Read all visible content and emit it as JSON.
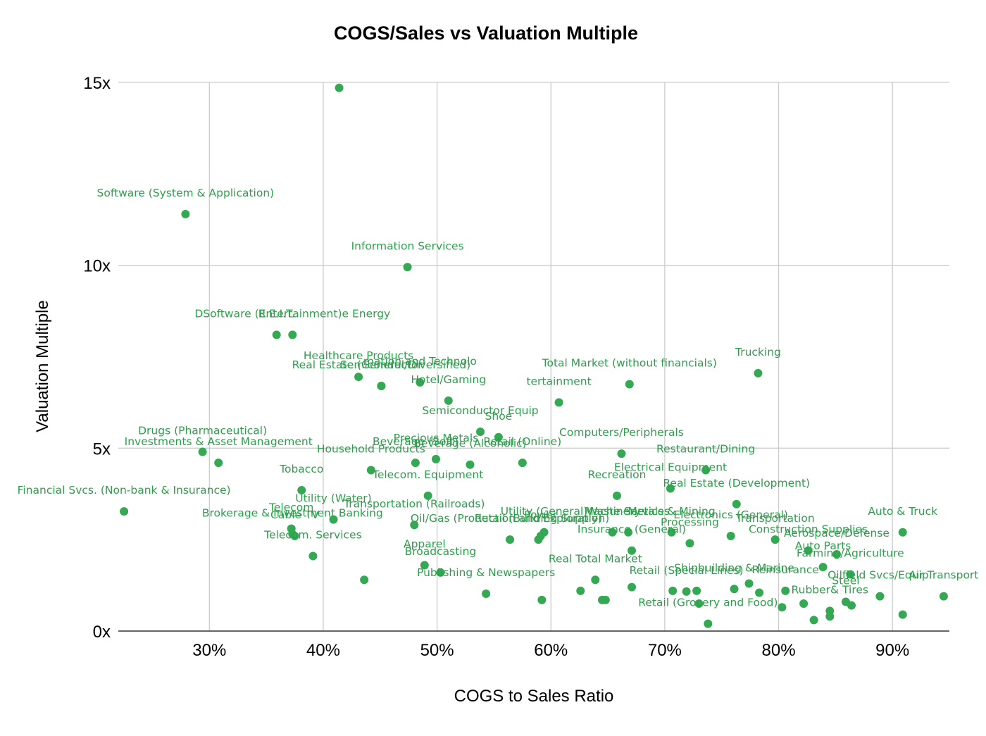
{
  "chart_data": {
    "type": "scatter",
    "title": "COGS/Sales vs Valuation Multiple",
    "xlabel": "COGS to Sales Ratio",
    "ylabel": "Valuation Multiple",
    "xlim": [
      22,
      95
    ],
    "ylim": [
      0,
      15
    ],
    "x_ticks": [
      {
        "value": 30,
        "label": "30%"
      },
      {
        "value": 40,
        "label": "40%"
      },
      {
        "value": 50,
        "label": "50%"
      },
      {
        "value": 60,
        "label": "60%"
      },
      {
        "value": 70,
        "label": "70%"
      },
      {
        "value": 80,
        "label": "80%"
      },
      {
        "value": 90,
        "label": "90%"
      }
    ],
    "y_ticks": [
      {
        "value": 0,
        "label": "0x"
      },
      {
        "value": 5,
        "label": "5x"
      },
      {
        "value": 10,
        "label": "10x"
      },
      {
        "value": 15,
        "label": "15x"
      }
    ],
    "point_color": "#34a853",
    "label_color": "#2e9e4c",
    "grid": true,
    "labeled_points": [
      {
        "label": "Software (System & Application)",
        "x": 27.9,
        "y": 11.4
      },
      {
        "label": "Information Services",
        "x": 47.4,
        "y": 9.95
      },
      {
        "label": "DSoftware (Entertainment)e Energy",
        "x": 37.3,
        "y": 8.1
      },
      {
        "label": "R.E.I.T.",
        "x": 35.9,
        "y": 8.1
      },
      {
        "label": "Healthcare Products",
        "x": 43.1,
        "y": 6.95
      },
      {
        "label": "Semiconductor",
        "x": 45.1,
        "y": 6.7
      },
      {
        "label": "mation and Technolo",
        "x": 48.5,
        "y": 6.8
      },
      {
        "label": "Total Market (without financials)",
        "x": 66.9,
        "y": 6.75
      },
      {
        "label": "Trucking",
        "x": 78.2,
        "y": 7.05
      },
      {
        "label": "Real Estate (General/Diversified)",
        "x": 45.1,
        "y": 6.7
      },
      {
        "label": "tertainment",
        "x": 60.7,
        "y": 6.25
      },
      {
        "label": "Hotel/Gaming",
        "x": 51,
        "y": 6.3
      },
      {
        "label": "Semiconductor Equip",
        "x": 53.8,
        "y": 5.45
      },
      {
        "label": "Shoe",
        "x": 55.4,
        "y": 5.3
      },
      {
        "label": "Computers/Peripherals",
        "x": 66.2,
        "y": 4.85
      },
      {
        "label": "Drugs (Pharmaceutical)",
        "x": 29.4,
        "y": 4.9
      },
      {
        "label": "Investments & Asset Management",
        "x": 30.8,
        "y": 4.6
      },
      {
        "label": "Precious Metals",
        "x": 49.9,
        "y": 4.7
      },
      {
        "label": "Retail (Online)",
        "x": 57.5,
        "y": 4.6
      },
      {
        "label": "Beverage (Soft)",
        "x": 48.1,
        "y": 4.6
      },
      {
        "label": "Beverage (Alcoholic)",
        "x": 52.9,
        "y": 4.55
      },
      {
        "label": "Restaurant/Dining",
        "x": 73.6,
        "y": 4.4
      },
      {
        "label": "Tobacco",
        "x": 38.1,
        "y": 3.85
      },
      {
        "label": "Household Products",
        "x": 44.2,
        "y": 4.4
      },
      {
        "label": "Financial Svcs. (Non-bank & Insurance)",
        "x": 22.5,
        "y": 3.27
      },
      {
        "label": "Telecom. Equipment",
        "x": 49.2,
        "y": 3.7
      },
      {
        "label": "Electrical Equipment",
        "x": 70.5,
        "y": 3.9
      },
      {
        "label": "Recreation",
        "x": 65.8,
        "y": 3.7
      },
      {
        "label": "Real Estate (Development)",
        "x": 76.3,
        "y": 3.47
      },
      {
        "label": "Auto & Truck",
        "x": 90.9,
        "y": 2.7
      },
      {
        "label": "Cable TV",
        "x": 37.5,
        "y": 2.6
      },
      {
        "label": "Utility (Water)",
        "x": 40.9,
        "y": 3.05
      },
      {
        "label": "Telecom",
        "x": 37.2,
        "y": 2.8
      },
      {
        "label": "Transportation (Railroads)",
        "x": 48,
        "y": 2.9
      },
      {
        "label": "Utility (General)",
        "x": 59.4,
        "y": 2.7
      },
      {
        "label": "Machinery",
        "x": 65.4,
        "y": 2.7
      },
      {
        "label": "Waste Services",
        "x": 66.8,
        "y": 2.7
      },
      {
        "label": "Power",
        "x": 59.1,
        "y": 2.6
      },
      {
        "label": "Electronics (General)",
        "x": 75.8,
        "y": 2.6
      },
      {
        "label": "Metals & Mining",
        "x": 70.6,
        "y": 2.7
      },
      {
        "label": "Transportation",
        "x": 79.7,
        "y": 2.5
      },
      {
        "label": "Brokerage & Investment Banking",
        "x": 37.3,
        "y": 2.65
      },
      {
        "label": "Oil/Gas (Production and Exploration)",
        "x": 56.4,
        "y": 2.5
      },
      {
        "label": "Retail (Building Supply)",
        "x": 58.9,
        "y": 2.5
      },
      {
        "label": "Processing",
        "x": 72.2,
        "y": 2.4
      },
      {
        "label": "Construction Supplies",
        "x": 82.6,
        "y": 2.2
      },
      {
        "label": "Insurance (General)",
        "x": 67.1,
        "y": 2.2
      },
      {
        "label": "Aerospace/Defense",
        "x": 85.1,
        "y": 2.1
      },
      {
        "label": "Apparel",
        "x": 48.9,
        "y": 1.8
      },
      {
        "label": "Telecom. Services",
        "x": 39.1,
        "y": 2.05
      },
      {
        "label": "Auto Parts",
        "x": 83.9,
        "y": 1.75
      },
      {
        "label": "Broadcasting",
        "x": 50.3,
        "y": 1.6
      },
      {
        "label": "Real Total Market",
        "x": 63.9,
        "y": 1.4
      },
      {
        "label": "Shipbuilding & Marine",
        "x": 76.1,
        "y": 1.15
      },
      {
        "label": "Farming/Agriculture",
        "x": 86.3,
        "y": 1.55
      },
      {
        "label": "Air Transport",
        "x": 94.5,
        "y": 0.95
      },
      {
        "label": "Publishing & Newspapers",
        "x": 54.3,
        "y": 1.02
      },
      {
        "label": "Retail (Special Lines)",
        "x": 71.9,
        "y": 1.08
      },
      {
        "label": "Reinsurance",
        "x": 80.6,
        "y": 1.1
      },
      {
        "label": "Steel",
        "x": 85.9,
        "y": 0.8
      },
      {
        "label": "Oilfield Svcs/Equip.",
        "x": 88.9,
        "y": 0.95
      },
      {
        "label": "Rubber& Tires",
        "x": 84.5,
        "y": 0.55
      },
      {
        "label": "Retail (Grocery and Food)",
        "x": 73.8,
        "y": 0.2
      }
    ],
    "unlabeled_points": [
      {
        "x": 41.4,
        "y": 14.85
      },
      {
        "x": 43.6,
        "y": 1.4
      },
      {
        "x": 59.2,
        "y": 0.85
      },
      {
        "x": 62.6,
        "y": 1.1
      },
      {
        "x": 64.5,
        "y": 0.85
      },
      {
        "x": 64.8,
        "y": 0.85
      },
      {
        "x": 67.1,
        "y": 1.2
      },
      {
        "x": 70.7,
        "y": 1.1
      },
      {
        "x": 72.8,
        "y": 1.1
      },
      {
        "x": 73,
        "y": 0.75
      },
      {
        "x": 80.3,
        "y": 0.65
      },
      {
        "x": 82.2,
        "y": 0.75
      },
      {
        "x": 83.1,
        "y": 0.3
      },
      {
        "x": 84.5,
        "y": 0.4
      },
      {
        "x": 86.4,
        "y": 0.7
      },
      {
        "x": 90.9,
        "y": 0.45
      },
      {
        "x": 77.4,
        "y": 1.3
      },
      {
        "x": 78.3,
        "y": 1.05
      }
    ]
  }
}
